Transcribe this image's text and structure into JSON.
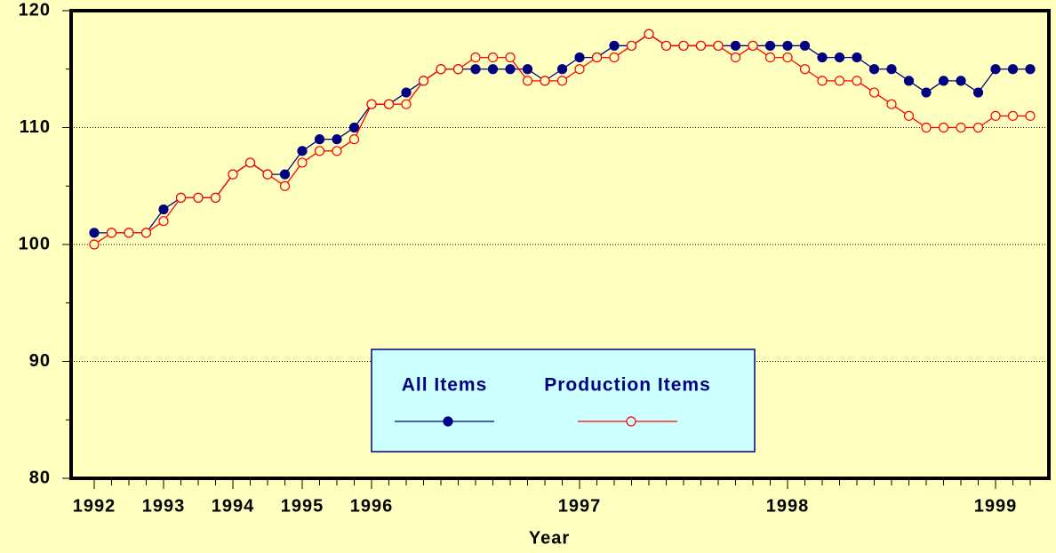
{
  "chart_data": {
    "type": "line",
    "x_label": "Year",
    "categories": [
      "1992",
      null,
      null,
      null,
      "1993",
      null,
      null,
      null,
      "1994",
      null,
      null,
      null,
      "1995",
      null,
      null,
      null,
      "1996",
      null,
      null,
      null,
      null,
      null,
      null,
      null,
      null,
      null,
      null,
      null,
      "1997",
      null,
      null,
      null,
      null,
      null,
      null,
      null,
      null,
      null,
      null,
      null,
      "1998",
      null,
      null,
      null,
      null,
      null,
      null,
      null,
      null,
      null,
      null,
      null,
      "1999",
      null,
      null
    ],
    "series": [
      {
        "name": "All Items",
        "color": "#000080",
        "marker": "filled",
        "values": [
          101,
          101,
          101,
          101,
          103,
          104,
          104,
          104,
          106,
          107,
          106,
          106,
          108,
          109,
          109,
          110,
          112,
          112,
          113,
          114,
          115,
          115,
          115,
          115,
          115,
          115,
          114,
          115,
          116,
          116,
          117,
          117,
          118,
          117,
          117,
          117,
          117,
          117,
          117,
          117,
          117,
          117,
          116,
          116,
          116,
          115,
          115,
          114,
          113,
          114,
          114,
          113,
          115,
          115,
          115
        ]
      },
      {
        "name": "Production Items",
        "color": "#ff0000",
        "marker": "open",
        "values": [
          100,
          101,
          101,
          101,
          102,
          104,
          104,
          104,
          106,
          107,
          106,
          105,
          107,
          108,
          108,
          109,
          112,
          112,
          112,
          114,
          115,
          115,
          116,
          116,
          116,
          114,
          114,
          114,
          115,
          116,
          116,
          117,
          118,
          117,
          117,
          117,
          117,
          116,
          117,
          116,
          116,
          115,
          114,
          114,
          114,
          113,
          112,
          111,
          110,
          110,
          110,
          110,
          111,
          111,
          111
        ]
      }
    ],
    "ylim": [
      80,
      120
    ],
    "yticks": [
      80,
      90,
      100,
      110,
      120
    ],
    "yminor_ticks": [
      85,
      95,
      105,
      115
    ],
    "grid": true
  }
}
